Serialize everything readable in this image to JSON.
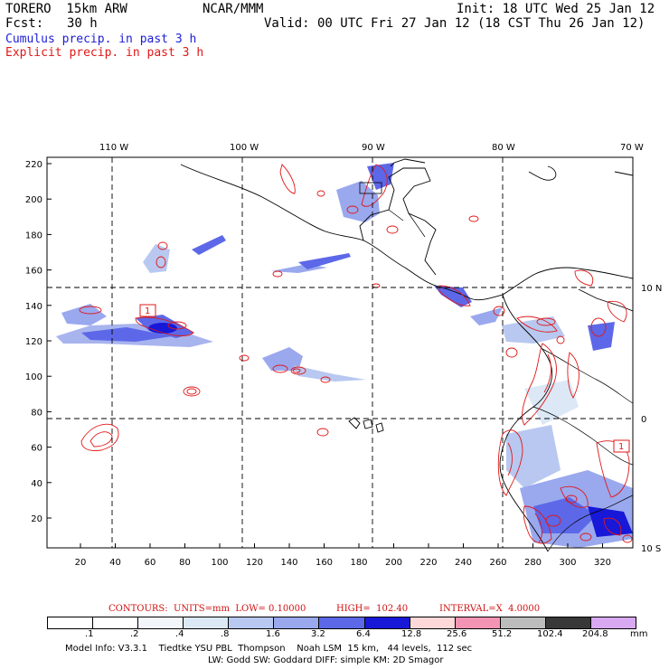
{
  "header": {
    "model": "TORERO  15km ARW",
    "org": "NCAR/MMM",
    "init": "Init: 18 UTC Wed 25 Jan 12",
    "fcst_label": "Fcst:",
    "fcst_value": "30 h",
    "valid": "Valid: 00 UTC Fri 27 Jan 12 (18 CST Thu 26 Jan 12)"
  },
  "legend": {
    "cumulus": "Cumulus precip. in past 3 h",
    "explicit": "Explicit precip. in past 3 h"
  },
  "axes": {
    "lon_labels": [
      "110 W",
      "100 W",
      "90 W",
      "80 W",
      "70 W"
    ],
    "lat_labels": [
      "10 N",
      "0",
      "10 S"
    ],
    "y_ticks": [
      "220",
      "200",
      "180",
      "160",
      "140",
      "120",
      "100",
      "80",
      "60",
      "40",
      "20"
    ],
    "x_ticks": [
      "20",
      "40",
      "60",
      "80",
      "100",
      "120",
      "140",
      "160",
      "180",
      "200",
      "220",
      "240",
      "260",
      "280",
      "300",
      "320"
    ]
  },
  "contour_info": {
    "units": "CONTOURS:  UNITS=mm  LOW= 0.10000",
    "high": "HIGH=  102.40",
    "interval": "INTERVAL=X  4.0000"
  },
  "contour_label": "1",
  "colorbar": {
    "levels": [
      ".1",
      ".2",
      ".4",
      ".8",
      "1.6",
      "3.2",
      "6.4",
      "12.8",
      "25.6",
      "51.2",
      "102.4",
      "204.8"
    ],
    "unit": "mm",
    "colors": [
      "#ffffff",
      "#ffffff",
      "#f2f6fb",
      "#dce8f6",
      "#b8c8f0",
      "#9aa8ee",
      "#5c68e8",
      "#1818d8",
      "#fcd8d8",
      "#f494b4",
      "#bcbcbc",
      "#383838",
      "#d8a8f0"
    ]
  },
  "footer": {
    "line1": "Model Info: V3.3.1    Tiedtke YSU PBL  Thompson    Noah LSM  15 km,   44 levels,  112 sec",
    "line2": "LW: Godd SW: Goddard DIFF: simple KM: 2D Smagor"
  },
  "colors": {
    "cumulus": "#1c1cd6",
    "explicit": "#e01818"
  }
}
